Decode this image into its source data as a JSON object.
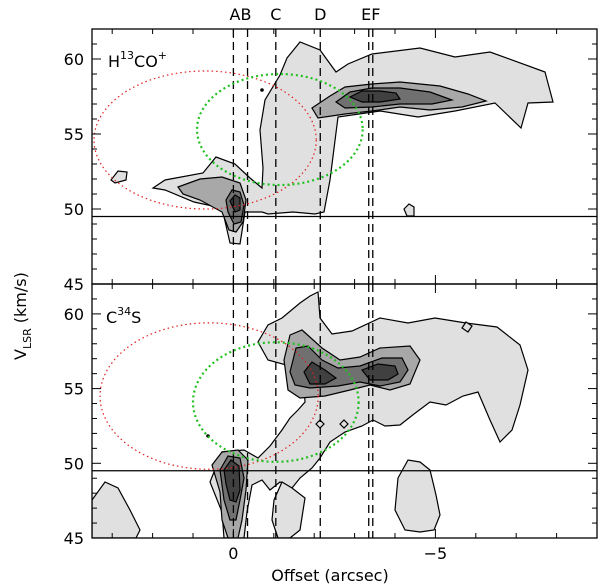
{
  "chart_data": {
    "type": "contour",
    "xlabel": "Offset (arcsec)",
    "ylabel_main": "V",
    "ylabel_sub": "LSR",
    "ylabel_unit": " (km/s)",
    "x_range": [
      3.5,
      -9.0
    ],
    "x_ticks": [
      0,
      -5
    ],
    "x_tick_labels": [
      "0",
      "−5"
    ],
    "markers": [
      {
        "label": "A",
        "x": 0.0
      },
      {
        "label": "B",
        "x": -0.35
      },
      {
        "label": "C",
        "x": -1.05
      },
      {
        "label": "D",
        "x": -2.15
      },
      {
        "label": "E",
        "x": -3.35
      },
      {
        "label": "F",
        "x": -3.45
      }
    ],
    "marker_text_groups": [
      "AB",
      "C",
      "D",
      "EF"
    ],
    "colors": {
      "contour_fill_levels": [
        "#e0e0e0",
        "#a8a8a8",
        "#707070",
        "#404040"
      ],
      "red_ellipse": "#e02020",
      "green_circle": "#20c020",
      "lines": "#000000"
    },
    "panels": [
      {
        "molecule_prefix": "H",
        "molecule_sup": "13",
        "molecule_rest": "CO",
        "molecule_sup2": "+",
        "ylim": [
          45,
          62
        ],
        "y_ticks": [
          45,
          50,
          55,
          60
        ],
        "y_tick_labels": [
          "45",
          "50",
          "55",
          "60"
        ],
        "systemic_velocity": 49.5,
        "red_ellipse": {
          "cx": 0.7,
          "cy": 54.6,
          "rx": 2.75,
          "ry": 4.6
        },
        "green_circle": {
          "cx": -1.15,
          "cy": 55.3,
          "rx": 2.05,
          "ry": 3.7
        },
        "emission_peaks": [
          {
            "x": -3.6,
            "y": 57.1,
            "peak_level": 4
          },
          {
            "x": 0.05,
            "y": 50.3,
            "peak_level": 3
          }
        ]
      },
      {
        "molecule_prefix": "C",
        "molecule_sup": "34",
        "molecule_rest": "S",
        "molecule_sup2": "",
        "ylim": [
          45,
          62
        ],
        "y_ticks": [
          45,
          50,
          55,
          60
        ],
        "y_tick_labels": [
          "45",
          "50",
          "55",
          "60"
        ],
        "systemic_velocity": 49.5,
        "red_ellipse": {
          "cx": 0.6,
          "cy": 54.5,
          "rx": 2.7,
          "ry": 4.9
        },
        "green_circle": {
          "cx": -1.05,
          "cy": 54.1,
          "rx": 2.05,
          "ry": 4.0
        },
        "emission_peaks": [
          {
            "x": -0.05,
            "y": 48.8,
            "peak_level": 4
          },
          {
            "x": -3.6,
            "y": 55.8,
            "peak_level": 4
          },
          {
            "x": -2.25,
            "y": 55.1,
            "peak_level": 4
          }
        ]
      }
    ]
  }
}
